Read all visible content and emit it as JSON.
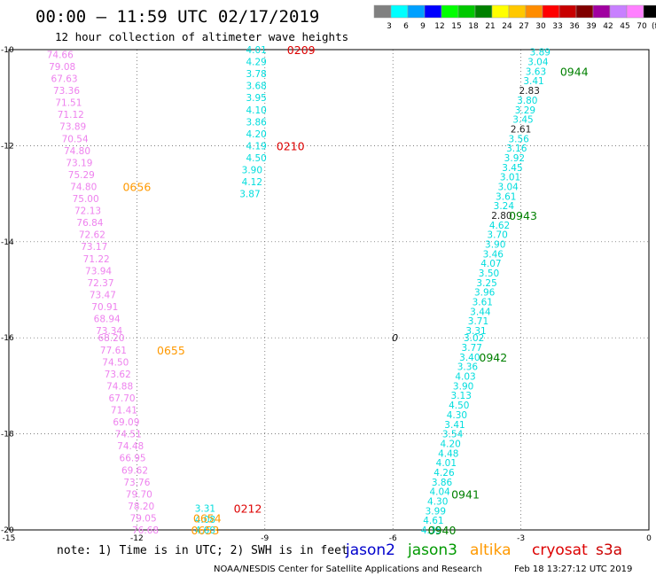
{
  "header": {
    "title": "00:00 – 11:59 UTC 02/17/2019",
    "subtitle": "12 hour collection of altimeter wave heights"
  },
  "legend": {
    "unit": "(ft)",
    "bins": [
      {
        "label": "3",
        "color": "#808080"
      },
      {
        "label": "6",
        "color": "#00ffff"
      },
      {
        "label": "9",
        "color": "#00a0ff"
      },
      {
        "label": "12",
        "color": "#0000ff"
      },
      {
        "label": "15",
        "color": "#00ff00"
      },
      {
        "label": "18",
        "color": "#00c800"
      },
      {
        "label": "21",
        "color": "#008000"
      },
      {
        "label": "24",
        "color": "#ffff00"
      },
      {
        "label": "27",
        "color": "#ffc800"
      },
      {
        "label": "30",
        "color": "#ff8c00"
      },
      {
        "label": "33",
        "color": "#ff0000"
      },
      {
        "label": "36",
        "color": "#c80000"
      },
      {
        "label": "39",
        "color": "#800000"
      },
      {
        "label": "42",
        "color": "#a000a0"
      },
      {
        "label": "45",
        "color": "#c880ff"
      },
      {
        "label": "70",
        "color": "#ff80ff"
      },
      {
        "label": "",
        "color": "#000000"
      }
    ]
  },
  "axes": {
    "x_ticks": [
      "-15",
      "-12",
      "-9",
      "-6",
      "-3",
      "0"
    ],
    "y_ticks": [
      "-10",
      "-12",
      "-14",
      "-16",
      "-18",
      "-20"
    ]
  },
  "chart_data": {
    "type": "scatter",
    "xlim": [
      -15,
      0
    ],
    "ylim": [
      -20,
      -10
    ],
    "grid": true,
    "colors": {
      "gray": "#222222",
      "cyan": "#00dddd",
      "pink": "#ee82ee",
      "orange": "#ff9900",
      "red": "#dd0000",
      "green": "#008000"
    },
    "series": [
      {
        "color": "pink",
        "points": [
          {
            "x": -13.8,
            "y": -10.1,
            "label": "74.66"
          },
          {
            "x": -13.75,
            "y": -10.35,
            "label": "79.08"
          },
          {
            "x": -13.7,
            "y": -10.6,
            "label": "67.63"
          },
          {
            "x": -13.65,
            "y": -10.85,
            "label": "73.36"
          },
          {
            "x": -13.6,
            "y": -11.1,
            "label": "71.51"
          },
          {
            "x": -13.55,
            "y": -11.35,
            "label": "71.12"
          },
          {
            "x": -13.5,
            "y": -11.6,
            "label": "73.89"
          },
          {
            "x": -13.45,
            "y": -11.85,
            "label": "70.54"
          },
          {
            "x": -13.4,
            "y": -12.1,
            "label": "74.80"
          },
          {
            "x": -13.35,
            "y": -12.35,
            "label": "73.19"
          },
          {
            "x": -13.3,
            "y": -12.6,
            "label": "75.29"
          },
          {
            "x": -13.25,
            "y": -12.85,
            "label": "74.80"
          },
          {
            "x": -13.2,
            "y": -13.1,
            "label": "75.00"
          },
          {
            "x": -13.15,
            "y": -13.35,
            "label": "72.13"
          },
          {
            "x": -13.1,
            "y": -13.6,
            "label": "76.84"
          },
          {
            "x": -13.05,
            "y": -13.85,
            "label": "72.62"
          },
          {
            "x": -13.0,
            "y": -14.1,
            "label": "73.17"
          },
          {
            "x": -12.95,
            "y": -14.35,
            "label": "71.22"
          },
          {
            "x": -12.9,
            "y": -14.6,
            "label": "73.94"
          },
          {
            "x": -12.85,
            "y": -14.85,
            "label": "72.37"
          },
          {
            "x": -12.8,
            "y": -15.1,
            "label": "73.47"
          },
          {
            "x": -12.75,
            "y": -15.35,
            "label": "70.91"
          },
          {
            "x": -12.7,
            "y": -15.6,
            "label": "68.94"
          },
          {
            "x": -12.65,
            "y": -15.85,
            "label": "73.34"
          },
          {
            "x": -12.6,
            "y": -16.0,
            "label": "68.20"
          },
          {
            "x": -12.55,
            "y": -16.25,
            "label": "77.61"
          },
          {
            "x": -12.5,
            "y": -16.5,
            "label": "74.50"
          },
          {
            "x": -12.45,
            "y": -16.75,
            "label": "73.62"
          },
          {
            "x": -12.4,
            "y": -17.0,
            "label": "74.88"
          },
          {
            "x": -12.35,
            "y": -17.25,
            "label": "67.70"
          },
          {
            "x": -12.3,
            "y": -17.5,
            "label": "71.41"
          },
          {
            "x": -12.25,
            "y": -17.75,
            "label": "69.09"
          },
          {
            "x": -12.2,
            "y": -18.0,
            "label": "74.51"
          },
          {
            "x": -12.15,
            "y": -18.25,
            "label": "74.48"
          },
          {
            "x": -12.1,
            "y": -18.5,
            "label": "66.95"
          },
          {
            "x": -12.05,
            "y": -18.75,
            "label": "69.62"
          },
          {
            "x": -12.0,
            "y": -19.0,
            "label": "73.76"
          },
          {
            "x": -11.95,
            "y": -19.25,
            "label": "79.70"
          },
          {
            "x": -11.9,
            "y": -19.5,
            "label": "78.20"
          },
          {
            "x": -11.85,
            "y": -19.75,
            "label": "79.05"
          },
          {
            "x": -11.8,
            "y": -20.0,
            "label": "76.68"
          }
        ]
      },
      {
        "color": "cyan",
        "points": [
          {
            "x": -9.2,
            "y": -10.0,
            "label": "4.01"
          },
          {
            "x": -9.2,
            "y": -10.25,
            "label": "4.29"
          },
          {
            "x": -9.2,
            "y": -10.5,
            "label": "3.78"
          },
          {
            "x": -9.2,
            "y": -10.75,
            "label": "3.68"
          },
          {
            "x": -9.2,
            "y": -11.0,
            "label": "3.95"
          },
          {
            "x": -9.2,
            "y": -11.25,
            "label": "4.10"
          },
          {
            "x": -9.2,
            "y": -11.5,
            "label": "3.86"
          },
          {
            "x": -9.2,
            "y": -11.75,
            "label": "4.20"
          },
          {
            "x": -9.2,
            "y": -12.0,
            "label": "4.19"
          },
          {
            "x": -9.2,
            "y": -12.25,
            "label": "4.50"
          },
          {
            "x": -9.3,
            "y": -12.5,
            "label": "3.90"
          },
          {
            "x": -9.3,
            "y": -12.75,
            "label": "4.12"
          },
          {
            "x": -9.35,
            "y": -13.0,
            "label": "3.87"
          }
        ]
      },
      {
        "color": "cyan",
        "points": [
          {
            "x": -2.55,
            "y": -10.05,
            "label": "3.89"
          },
          {
            "x": -2.6,
            "y": -10.25,
            "label": "3.04"
          },
          {
            "x": -2.65,
            "y": -10.45,
            "label": "3.63"
          },
          {
            "x": -2.7,
            "y": -10.65,
            "label": "3.41"
          },
          {
            "x": -2.8,
            "y": -10.85,
            "label": "2.83",
            "color": "gray"
          },
          {
            "x": -2.85,
            "y": -11.05,
            "label": "3.80"
          },
          {
            "x": -2.9,
            "y": -11.25,
            "label": "3.29"
          },
          {
            "x": -2.95,
            "y": -11.45,
            "label": "3.45"
          },
          {
            "x": -3.0,
            "y": -11.65,
            "label": "2.61",
            "color": "gray"
          },
          {
            "x": -3.05,
            "y": -11.85,
            "label": "3.56"
          },
          {
            "x": -3.1,
            "y": -12.05,
            "label": "3.16"
          },
          {
            "x": -3.15,
            "y": -12.25,
            "label": "3.92"
          },
          {
            "x": -3.2,
            "y": -12.45,
            "label": "3.45"
          },
          {
            "x": -3.25,
            "y": -12.65,
            "label": "3.01"
          },
          {
            "x": -3.3,
            "y": -12.85,
            "label": "3.04"
          },
          {
            "x": -3.35,
            "y": -13.05,
            "label": "3.61"
          },
          {
            "x": -3.4,
            "y": -13.25,
            "label": "3.24"
          },
          {
            "x": -3.45,
            "y": -13.45,
            "label": "2.80",
            "color": "gray"
          },
          {
            "x": -3.5,
            "y": -13.65,
            "label": "4.62"
          },
          {
            "x": -3.55,
            "y": -13.85,
            "label": "3.70"
          },
          {
            "x": -3.6,
            "y": -14.05,
            "label": "3.90"
          },
          {
            "x": -3.65,
            "y": -14.25,
            "label": "3.46"
          },
          {
            "x": -3.7,
            "y": -14.45,
            "label": "4.07"
          },
          {
            "x": -3.75,
            "y": -14.65,
            "label": "3.50"
          },
          {
            "x": -3.8,
            "y": -14.85,
            "label": "3.25"
          },
          {
            "x": -3.85,
            "y": -15.05,
            "label": "3.96"
          },
          {
            "x": -3.9,
            "y": -15.25,
            "label": "3.61"
          },
          {
            "x": -3.95,
            "y": -15.45,
            "label": "3.44"
          },
          {
            "x": -4.0,
            "y": -15.65,
            "label": "3.71"
          },
          {
            "x": -4.05,
            "y": -15.85,
            "label": "3.31"
          },
          {
            "x": -4.1,
            "y": -16.0,
            "label": "3.02"
          },
          {
            "x": -4.15,
            "y": -16.2,
            "label": "3.77"
          },
          {
            "x": -4.2,
            "y": -16.4,
            "label": "3.40"
          },
          {
            "x": -4.25,
            "y": -16.6,
            "label": "3.36"
          },
          {
            "x": -4.3,
            "y": -16.8,
            "label": "4.03"
          },
          {
            "x": -4.35,
            "y": -17.0,
            "label": "3.90"
          },
          {
            "x": -4.4,
            "y": -17.2,
            "label": "3.13"
          },
          {
            "x": -4.45,
            "y": -17.4,
            "label": "4.50"
          },
          {
            "x": -4.5,
            "y": -17.6,
            "label": "4.30"
          },
          {
            "x": -4.55,
            "y": -17.8,
            "label": "3.41"
          },
          {
            "x": -4.6,
            "y": -18.0,
            "label": "3.54"
          },
          {
            "x": -4.65,
            "y": -18.2,
            "label": "4.20"
          },
          {
            "x": -4.7,
            "y": -18.4,
            "label": "4.48"
          },
          {
            "x": -4.75,
            "y": -18.6,
            "label": "4.01"
          },
          {
            "x": -4.8,
            "y": -18.8,
            "label": "4.26"
          },
          {
            "x": -4.85,
            "y": -19.0,
            "label": "3.86"
          },
          {
            "x": -4.9,
            "y": -19.2,
            "label": "4.04"
          },
          {
            "x": -4.95,
            "y": -19.4,
            "label": "4.30"
          },
          {
            "x": -5.0,
            "y": -19.6,
            "label": "3.99"
          },
          {
            "x": -5.05,
            "y": -19.8,
            "label": "4.61"
          },
          {
            "x": -5.1,
            "y": -20.0,
            "label": "4.35"
          }
        ]
      },
      {
        "color": "cyan",
        "points": [
          {
            "x": -10.4,
            "y": -19.55,
            "label": "3.31"
          },
          {
            "x": -10.4,
            "y": -19.78,
            "label": "4.08"
          },
          {
            "x": -10.4,
            "y": -20.0,
            "label": "4.00"
          }
        ]
      }
    ],
    "pass_labels": [
      {
        "x": -8.15,
        "y": -10.0,
        "label": "0209",
        "color": "red"
      },
      {
        "x": -8.4,
        "y": -12.0,
        "label": "0210",
        "color": "red"
      },
      {
        "x": -9.4,
        "y": -19.55,
        "label": "0212",
        "color": "red"
      },
      {
        "x": -12.0,
        "y": -12.85,
        "label": "0656",
        "color": "orange"
      },
      {
        "x": -11.2,
        "y": -16.25,
        "label": "0655",
        "color": "orange"
      },
      {
        "x": -10.35,
        "y": -19.75,
        "label": "0654",
        "color": "orange"
      },
      {
        "x": -10.4,
        "y": -20.0,
        "label": "0653",
        "color": "orange"
      },
      {
        "x": -1.75,
        "y": -10.45,
        "label": "0944",
        "color": "green"
      },
      {
        "x": -2.95,
        "y": -13.45,
        "label": "0943",
        "color": "green"
      },
      {
        "x": -3.65,
        "y": -16.4,
        "label": "0942",
        "color": "green"
      },
      {
        "x": -4.3,
        "y": -19.25,
        "label": "0941",
        "color": "green"
      },
      {
        "x": -4.85,
        "y": -20.0,
        "label": "0940",
        "color": "green"
      }
    ],
    "marker": {
      "x": -5.95,
      "y": -16.0,
      "label": "0"
    }
  },
  "footer": {
    "note": "note: 1) Time is in UTC; 2) SWH is in feet",
    "missions": [
      {
        "name": "jason2",
        "color": "#0000cc"
      },
      {
        "name": "jason3",
        "color": "#009900"
      },
      {
        "name": "altika",
        "color": "#ff9900"
      },
      {
        "name": "cryosat",
        "color": "#dd0000"
      },
      {
        "name": "s3a",
        "color": "#cc0000"
      }
    ],
    "credit": "NOAA/NESDIS Center for Satellite Applications and Research",
    "timestamp": "Feb 18 13:27:12 UTC 2019"
  }
}
